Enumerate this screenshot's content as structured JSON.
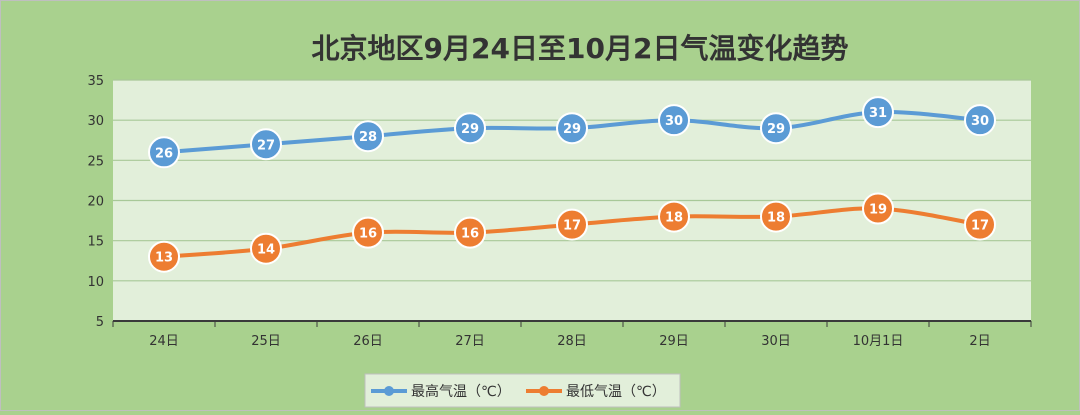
{
  "colors": {
    "page_bg": "#a9d18e",
    "plot_bg": "#e2efda",
    "grid": "#a8c898",
    "axis": "#3a3a3a",
    "max_series": "#5b9bd5",
    "min_series": "#ed7d31",
    "label_text": "#ffffff",
    "text": "#333333"
  },
  "chart_data": {
    "type": "line",
    "title": "北京地区9月24日至10月2日气温变化趋势",
    "xlabel": "",
    "ylabel": "",
    "categories": [
      "24日",
      "25日",
      "26日",
      "27日",
      "28日",
      "29日",
      "30日",
      "10月1日",
      "2日"
    ],
    "yticks": [
      5,
      10,
      15,
      20,
      25,
      30,
      35
    ],
    "ylim": [
      5,
      35
    ],
    "grid": true,
    "legend_position": "bottom",
    "series": [
      {
        "name": "最高气温（℃）",
        "color": "#5b9bd5",
        "values": [
          26,
          27,
          28,
          29,
          29,
          30,
          29,
          31,
          30
        ]
      },
      {
        "name": "最低气温（℃）",
        "color": "#ed7d31",
        "values": [
          13,
          14,
          16,
          16,
          17,
          18,
          18,
          19,
          17
        ]
      }
    ]
  }
}
